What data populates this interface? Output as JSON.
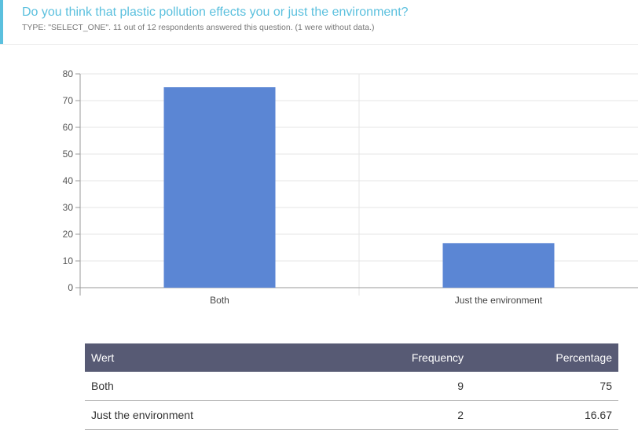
{
  "header": {
    "question": "Do you think that plastic pollution effects you or just the environment?",
    "meta": "TYPE: \"SELECT_ONE\". 11 out of 12 respondents answered this question. (1 were without data.)"
  },
  "colors": {
    "accent": "#5bc0de",
    "bar": "#5b86d4",
    "table_header": "#575a74"
  },
  "chart_data": {
    "type": "bar",
    "categories": [
      "Both",
      "Just the environment"
    ],
    "values": [
      75,
      16.67
    ],
    "ylim": [
      0,
      80
    ],
    "yticks": [
      0,
      10,
      20,
      30,
      40,
      50,
      60,
      70,
      80
    ],
    "grid": true,
    "legend": "none"
  },
  "table": {
    "headers": {
      "value": "Wert",
      "frequency": "Frequency",
      "percentage": "Percentage"
    },
    "rows": [
      {
        "value": "Both",
        "frequency": "9",
        "percentage": "75"
      },
      {
        "value": "Just the environment",
        "frequency": "2",
        "percentage": "16.67"
      }
    ]
  }
}
